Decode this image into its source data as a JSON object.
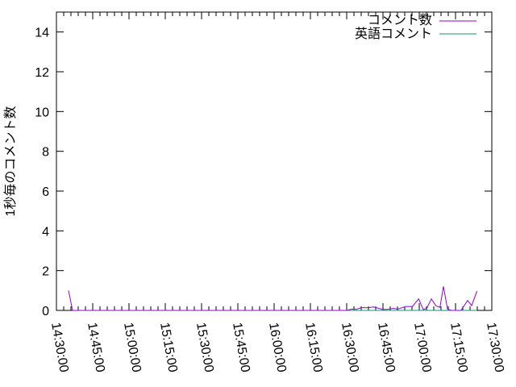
{
  "chart_data": {
    "type": "line",
    "title": "",
    "xlabel": "",
    "ylabel": "1秒毎のコメント数",
    "xlim": [
      "14:30:00",
      "17:30:00"
    ],
    "ylim": [
      0,
      15
    ],
    "x_ticks": [
      "14:30:00",
      "14:45:00",
      "15:00:00",
      "15:15:00",
      "15:30:00",
      "15:45:00",
      "16:00:00",
      "16:15:00",
      "16:30:00",
      "16:45:00",
      "17:00:00",
      "17:15:00",
      "17:30:00"
    ],
    "y_ticks": [
      "0",
      "2",
      "4",
      "6",
      "8",
      "10",
      "12",
      "14"
    ],
    "grid": false,
    "legend": "top-right",
    "series": [
      {
        "name": "コメント数",
        "color": "#9400d3",
        "points": [
          [
            "14:35:00",
            1
          ],
          [
            "14:36:40",
            0
          ],
          [
            "16:30:00",
            0
          ],
          [
            "16:32:13",
            0.07
          ],
          [
            "16:33:55",
            0.05
          ],
          [
            "16:36:06",
            0.14
          ],
          [
            "16:38:20",
            0.13
          ],
          [
            "16:41:06",
            0.17
          ],
          [
            "16:43:20",
            0.1
          ],
          [
            "16:45:00",
            0.04
          ],
          [
            "16:47:13",
            0.06
          ],
          [
            "16:49:26",
            0.1
          ],
          [
            "16:51:06",
            0.06
          ],
          [
            "16:54:26",
            0.2
          ],
          [
            "16:57:13",
            0.2
          ],
          [
            "16:59:46",
            0.58
          ],
          [
            "17:01:40",
            0.04
          ],
          [
            "17:03:06",
            0.1
          ],
          [
            "17:05:00",
            0.58
          ],
          [
            "17:06:54",
            0.23
          ],
          [
            "17:08:34",
            0.15
          ],
          [
            "17:10:00",
            1.21
          ],
          [
            "17:11:40",
            0.07
          ],
          [
            "17:13:20",
            0
          ],
          [
            "17:17:13",
            0
          ],
          [
            "17:20:00",
            0.5
          ],
          [
            "17:21:40",
            0.24
          ],
          [
            "17:23:53",
            0.97
          ]
        ]
      },
      {
        "name": "英語コメント",
        "color": "#009e73",
        "points": [
          [
            "16:30:00",
            0
          ],
          [
            "16:45:00",
            0
          ],
          [
            "17:00:00",
            0
          ],
          [
            "17:15:00",
            0
          ],
          [
            "17:23:53",
            0
          ]
        ]
      }
    ]
  }
}
